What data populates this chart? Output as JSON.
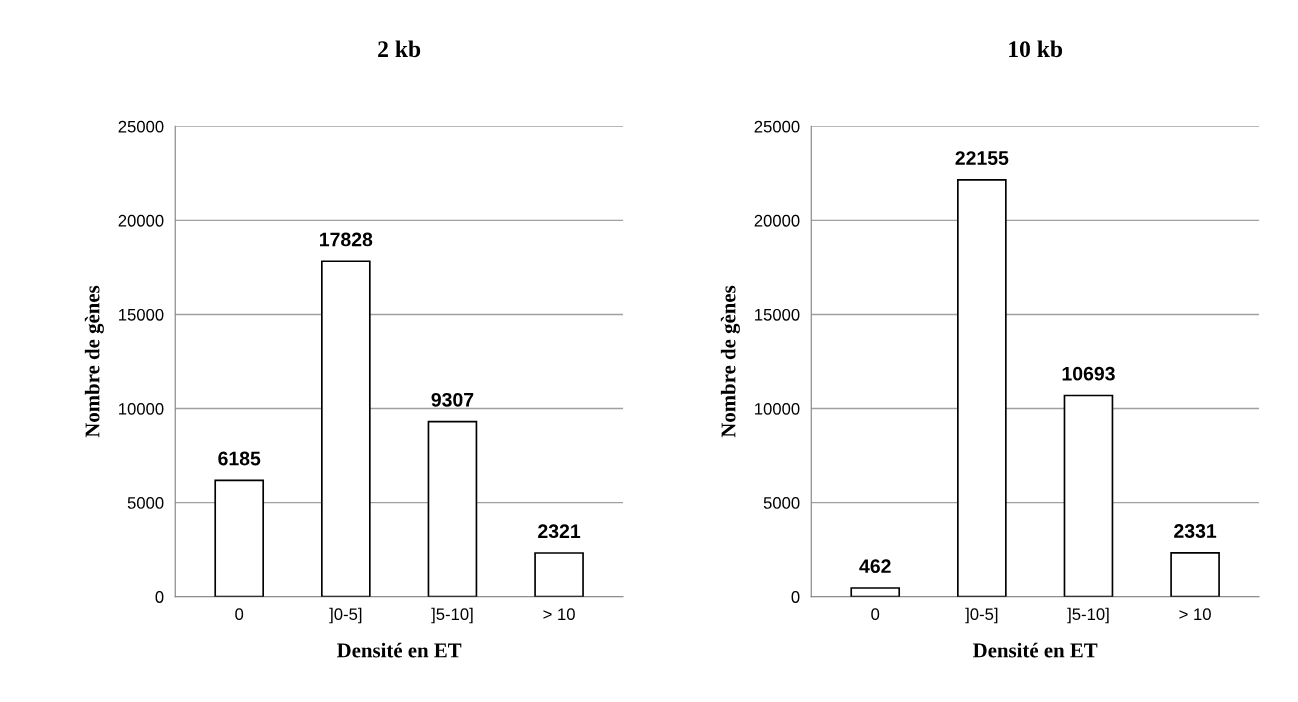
{
  "chart_data": [
    {
      "type": "bar",
      "title": "2 kb",
      "xlabel": "Densité en ET",
      "ylabel": "Nombre de gènes",
      "categories": [
        "0",
        "]0-5]",
        "]5-10]",
        "> 10"
      ],
      "values": [
        6185,
        17828,
        9307,
        2321
      ],
      "color": "#ffffff",
      "ylim": [
        0,
        25000
      ],
      "yticks": [
        0,
        5000,
        10000,
        15000,
        20000,
        25000
      ],
      "grid": "y",
      "data_labels": true
    },
    {
      "type": "bar",
      "title": "10 kb",
      "xlabel": "Densité en ET",
      "ylabel": "Nombre de gènes",
      "categories": [
        "0",
        "]0-5]",
        "]5-10]",
        "> 10"
      ],
      "values": [
        462,
        22155,
        10693,
        2331
      ],
      "color": "#ffffff",
      "ylim": [
        0,
        25000
      ],
      "yticks": [
        0,
        5000,
        10000,
        15000,
        20000,
        25000
      ],
      "grid": "y",
      "data_labels": true
    }
  ]
}
